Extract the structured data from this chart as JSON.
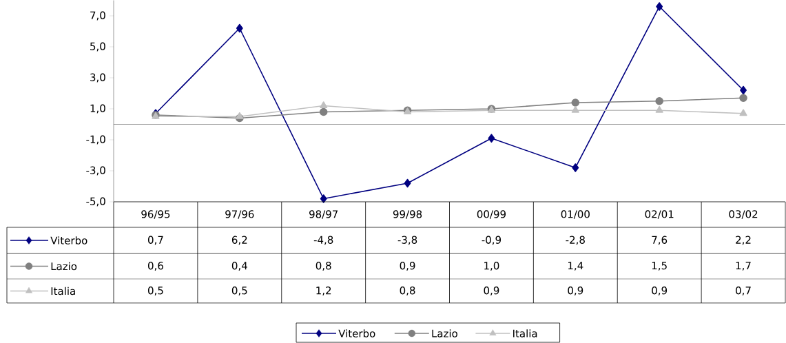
{
  "chart_data": {
    "type": "line",
    "categories": [
      "96/95",
      "97/96",
      "98/97",
      "99/98",
      "00/99",
      "01/00",
      "02/01",
      "03/02"
    ],
    "series": [
      {
        "name": "Viterbo",
        "color": "#000080",
        "marker": "diamond",
        "values": [
          0.7,
          6.2,
          -4.8,
          -3.8,
          -0.9,
          -2.8,
          7.6,
          2.2
        ],
        "value_labels": [
          "0,7",
          "6,2",
          "-4,8",
          "-3,8",
          "-0,9",
          "-2,8",
          "7,6",
          "2,2"
        ]
      },
      {
        "name": "Lazio",
        "color": "#808080",
        "marker": "circle",
        "values": [
          0.6,
          0.4,
          0.8,
          0.9,
          1.0,
          1.4,
          1.5,
          1.7
        ],
        "value_labels": [
          "0,6",
          "0,4",
          "0,8",
          "0,9",
          "1,0",
          "1,4",
          "1,5",
          "1,7"
        ]
      },
      {
        "name": "Italia",
        "color": "#c0c0c0",
        "marker": "triangle",
        "values": [
          0.5,
          0.5,
          1.2,
          0.8,
          0.9,
          0.9,
          0.9,
          0.7
        ],
        "value_labels": [
          "0,5",
          "0,5",
          "1,2",
          "0,8",
          "0,9",
          "0,9",
          "0,9",
          "0,7"
        ]
      }
    ],
    "ylim": [
      -5,
      8
    ],
    "yticks": [
      {
        "value": -5,
        "label": "-5,0"
      },
      {
        "value": -3,
        "label": "-3,0"
      },
      {
        "value": -1,
        "label": "-1,0"
      },
      {
        "value": 1,
        "label": "1,0"
      },
      {
        "value": 3,
        "label": "3,0"
      },
      {
        "value": 5,
        "label": "5,0"
      },
      {
        "value": 7,
        "label": "7,0"
      }
    ],
    "legend": "bottom"
  }
}
